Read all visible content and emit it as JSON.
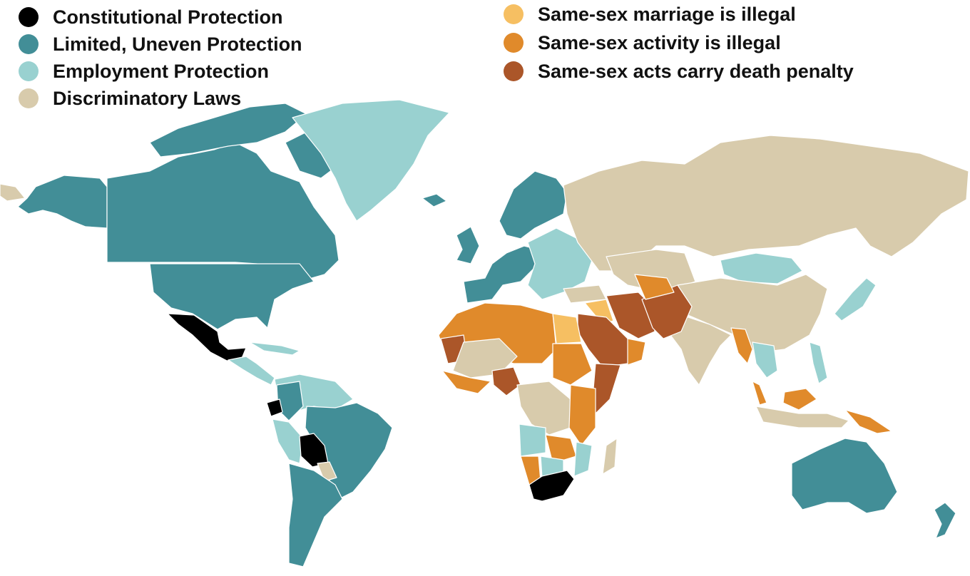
{
  "legend_left": [
    {
      "label": "Constitutional Protection",
      "color": "#000000"
    },
    {
      "label": "Limited, Uneven Protection",
      "color": "#428e97"
    },
    {
      "label": "Employment Protection",
      "color": "#99d1d0"
    },
    {
      "label": "Discriminatory Laws",
      "color": "#d8cbac"
    }
  ],
  "legend_right": [
    {
      "label": "Same-sex marriage is illegal",
      "color": "#f6bf62"
    },
    {
      "label": "Same-sex activity is illegal",
      "color": "#e08a2b"
    },
    {
      "label": "Same-sex acts carry death penalty",
      "color": "#ab5629"
    }
  ],
  "map": {
    "type": "world choropleth",
    "regions": {
      "constitutional_protection": [
        "Mexico",
        "Ecuador",
        "Bolivia",
        "South Africa"
      ],
      "limited_uneven_protection": [
        "Canada",
        "United States",
        "Brazil",
        "Argentina",
        "Chile",
        "Colombia",
        "Western Europe",
        "Scandinavia",
        "Australia",
        "New Zealand"
      ],
      "employment_protection": [
        "Greenland",
        "Central & Eastern Europe",
        "Mongolia",
        "Peru",
        "Venezuela",
        "Japan",
        "Philippines",
        "Thailand",
        "Angola",
        "Mozambique"
      ],
      "discriminatory_laws": [
        "Russia",
        "China",
        "India",
        "Central Asia",
        "Indonesia",
        "Central Africa"
      ],
      "marriage_illegal": [
        "Egypt",
        "Iraq"
      ],
      "activity_illegal": [
        "North & East Africa",
        "Pakistan",
        "Myanmar",
        "Malaysia",
        "Papua New Guinea",
        "Zambia",
        "Namibia"
      ],
      "death_penalty": [
        "Saudi Arabia",
        "Iran",
        "Afghanistan",
        "Mauritania",
        "Nigeria",
        "Somalia",
        "Yemen"
      ]
    }
  }
}
